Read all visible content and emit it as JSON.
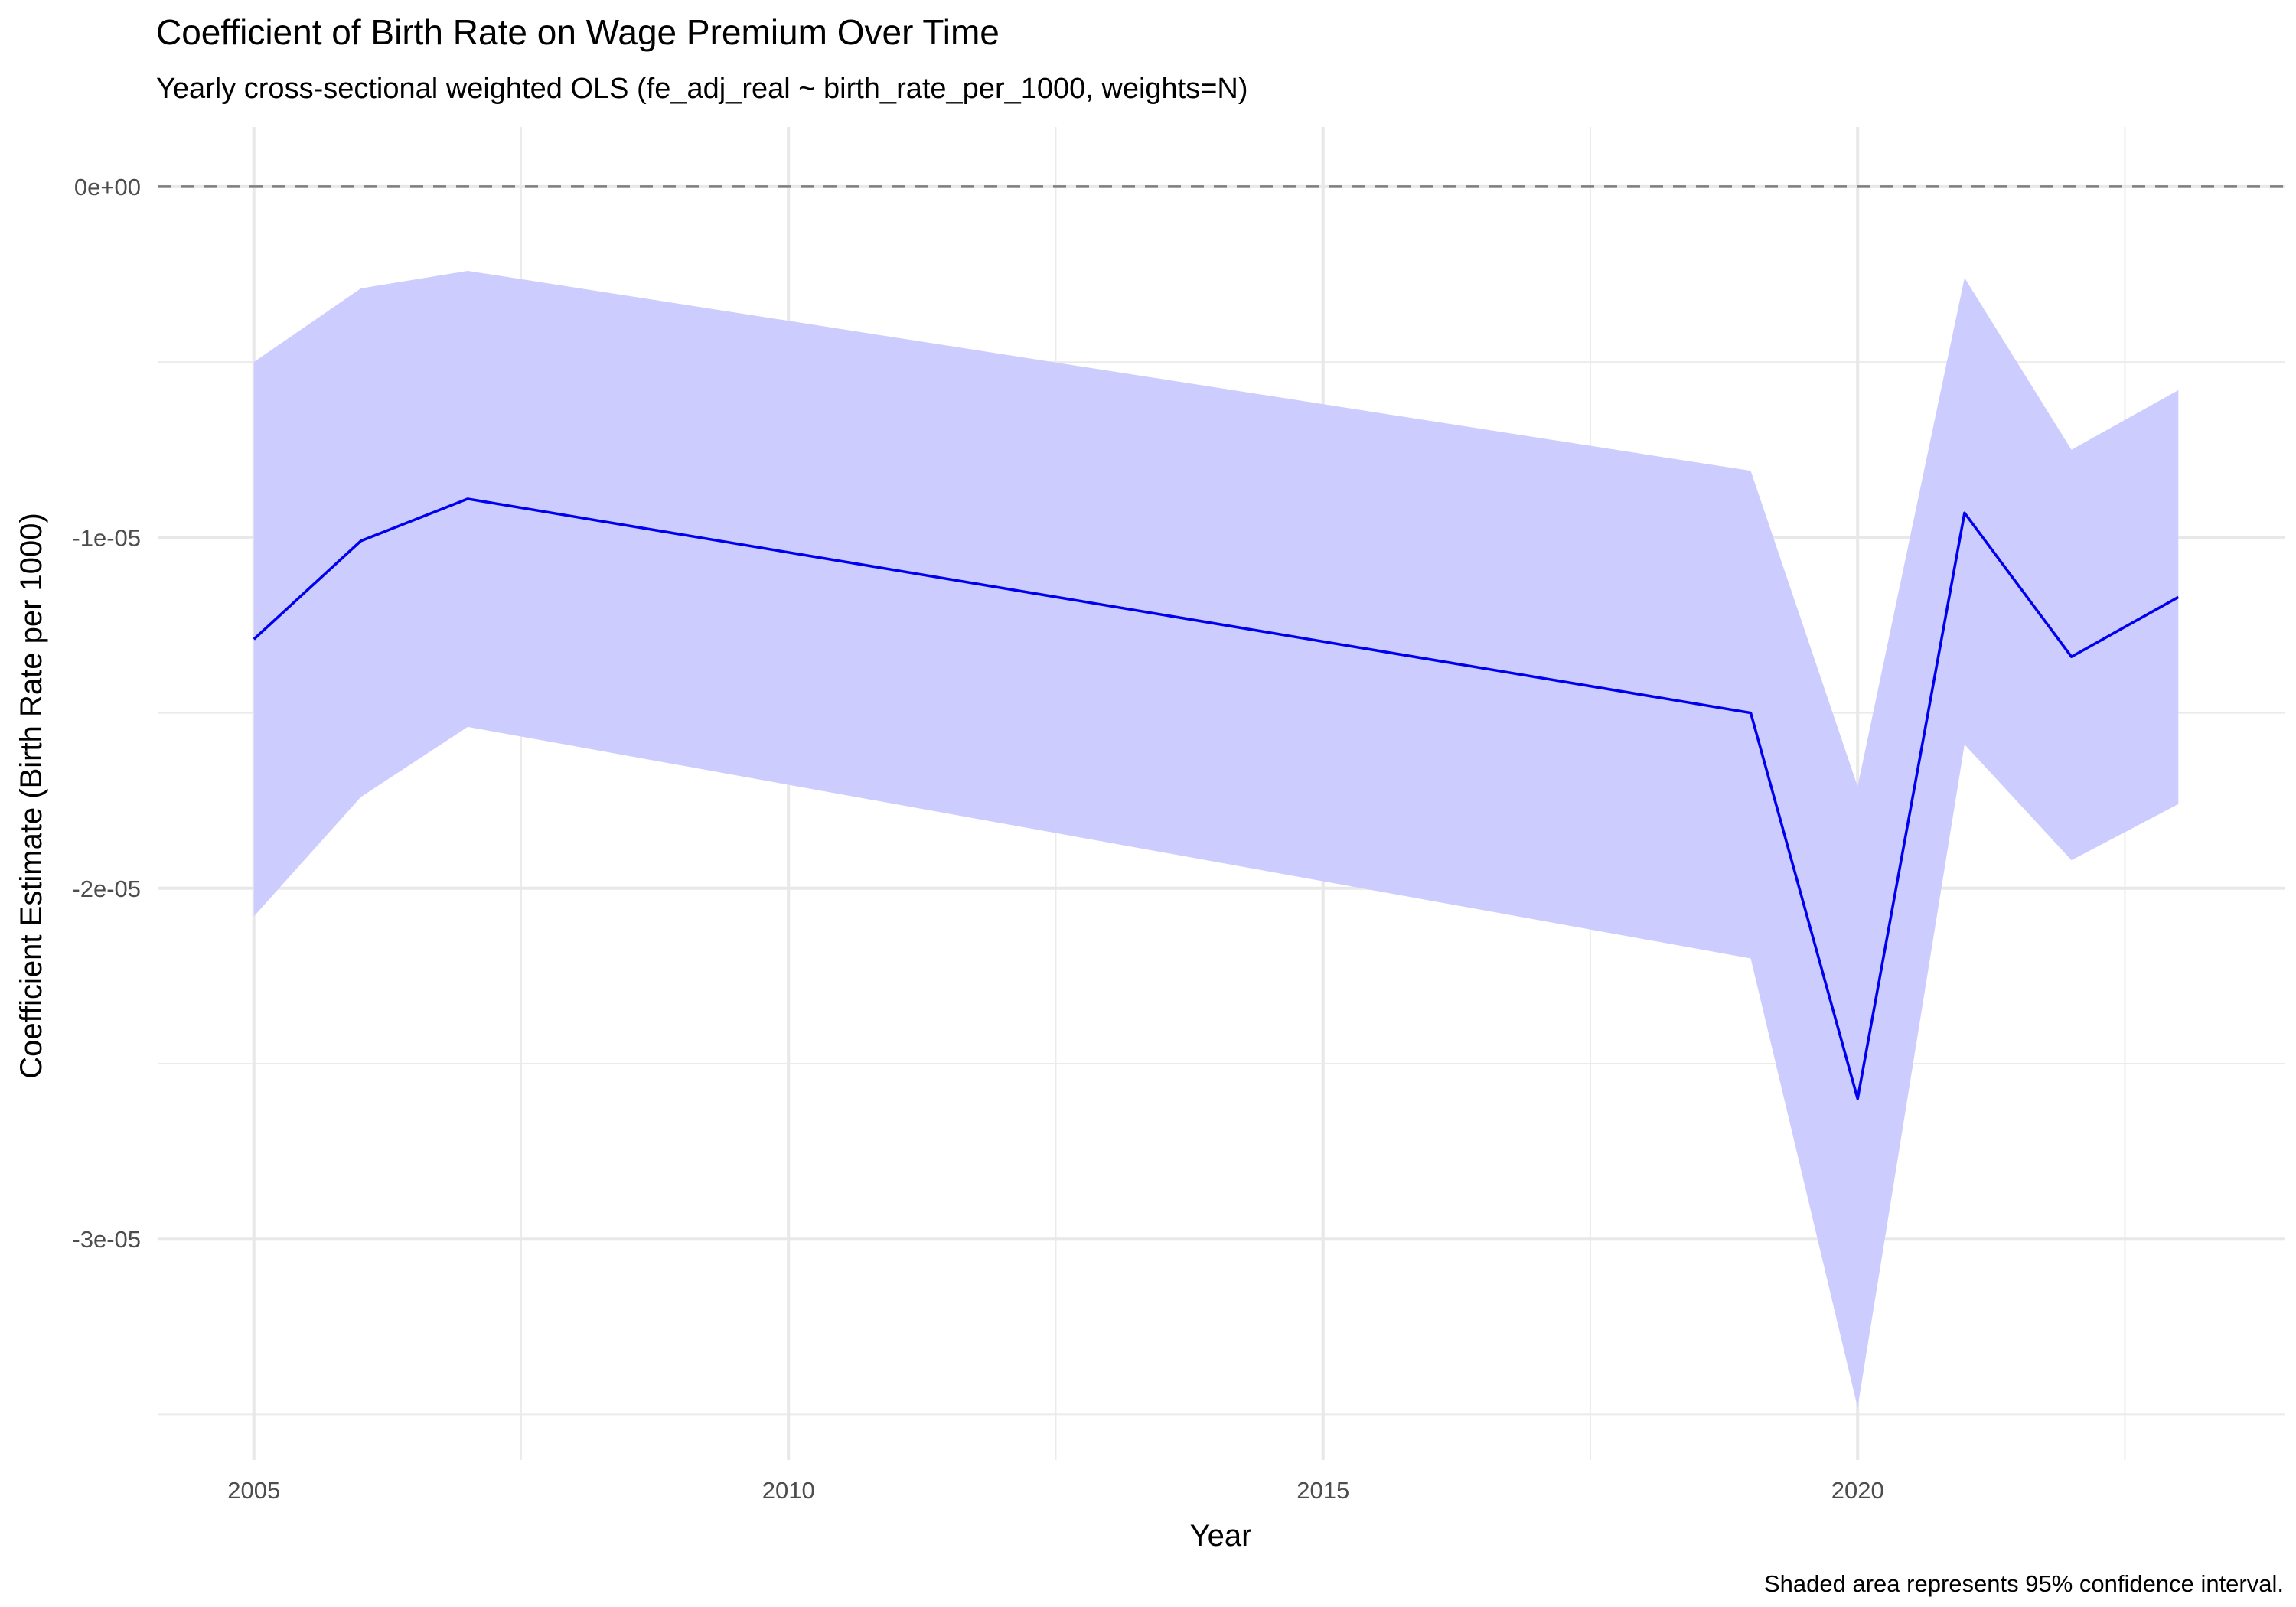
{
  "chart_data": {
    "type": "line",
    "title": "Coefficient of Birth Rate on Wage Premium Over Time",
    "subtitle": "Yearly cross-sectional weighted OLS (fe_adj_real ~ birth_rate_per_1000, weights=N)",
    "xlabel": "Year",
    "ylabel": "Coefficient Estimate (Birth Rate per 1000)",
    "caption": "Shaded area represents 95% confidence interval.",
    "xlim": [
      2004.1,
      2024.0
    ],
    "ylim": [
      -3.63e-05,
      1.7e-06
    ],
    "x_ticks": [
      2005,
      2010,
      2015,
      2020
    ],
    "x_tick_labels": [
      "2005",
      "2010",
      "2015",
      "2020"
    ],
    "y_ticks": [
      0,
      -1e-05,
      -2e-05,
      -3e-05
    ],
    "y_tick_labels": [
      "0e+00",
      "-1e-05",
      "-2e-05",
      "-3e-05"
    ],
    "x_minor": [
      2007.5,
      2012.5,
      2017.5,
      2022.5
    ],
    "y_minor": [
      -5e-06,
      -1.5e-05,
      -2.5e-05,
      -3.5e-05
    ],
    "grid": true,
    "reference_line": {
      "y": 0,
      "style": "dashed",
      "color": "#7f7f7f"
    },
    "series": [
      {
        "x": [
          2005,
          2006,
          2007,
          2019,
          2020,
          2021,
          2022,
          2023
        ],
        "y": [
          -1.29e-05,
          -1.01e-05,
          -8.9e-06,
          -1.5e-05,
          -2.6e-05,
          -9.3e-06,
          -1.34e-05,
          -1.17e-05
        ],
        "lower": [
          -2.08e-05,
          -1.74e-05,
          -1.54e-05,
          -2.2e-05,
          -3.48e-05,
          -1.59e-05,
          -1.92e-05,
          -1.76e-05
        ],
        "upper": [
          -5e-06,
          -2.9e-06,
          -2.4e-06,
          -8.1e-06,
          -1.71e-05,
          -2.6e-06,
          -7.5e-06,
          -5.8e-06
        ],
        "line_color": "#0000ee",
        "ribbon_color": "#ccccff"
      }
    ]
  }
}
